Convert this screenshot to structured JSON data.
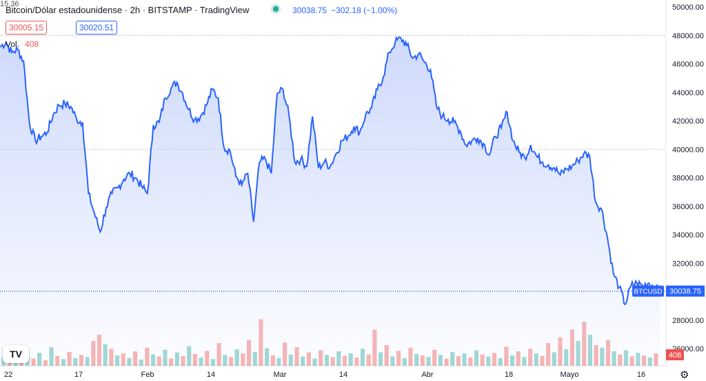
{
  "header": {
    "title": "Bitcoin/Dólar estadounidense · 2h · BITSTAMP · TradingView",
    "price": "30038.75",
    "change": "−302.18 (−1.00%)",
    "bid": "30005.15",
    "spread": "15.36",
    "ask": "30020.51",
    "vol_label": "Vol.",
    "vol_value": "408"
  },
  "colors": {
    "line": "#2962ff",
    "area_top": "#c9d6fb",
    "up_volume": "#26a69a",
    "down_volume": "#ef5350",
    "last_price_label": "#2962ff"
  },
  "icons": {
    "logo": "tradingview-logo",
    "settings": "gear-icon"
  },
  "logo_text": "TV",
  "chart_data": {
    "type": "area",
    "title": "Bitcoin/Dólar estadounidense · 2h · BITSTAMP",
    "ylim": [
      25000,
      50500
    ],
    "y_ticks": [
      "50000.00",
      "48000.00",
      "46000.00",
      "44000.00",
      "42000.00",
      "40000.00",
      "38000.00",
      "36000.00",
      "34000.00",
      "32000.00",
      "30000.00",
      "28000.00",
      "26000.00"
    ],
    "x_ticks": [
      "22",
      "17",
      "Feb",
      "14",
      "Mar",
      "14",
      "Abr",
      "18",
      "Mayo",
      "16"
    ],
    "last_label": "BTCUSD",
    "last_price": "30038.75",
    "volume_label": "408",
    "series": [
      {
        "values": [
          47200,
          47500,
          46800,
          47000,
          46200,
          41800,
          40600,
          40900,
          41200,
          42400,
          43100,
          43200,
          43000,
          42100,
          41900,
          36900,
          35500,
          34200,
          35900,
          36900,
          37300,
          37900,
          38300,
          38000,
          37400,
          36900,
          41700,
          41900,
          43600,
          44300,
          44700,
          43900,
          42800,
          42100,
          42300,
          43100,
          44200,
          43600,
          40100,
          39900,
          38100,
          37500,
          38300,
          34900,
          39100,
          39300,
          38300,
          43900,
          44200,
          42400,
          39100,
          39300,
          38800,
          42300,
          38700,
          39100,
          38800,
          39700,
          40600,
          40900,
          41600,
          41200,
          42400,
          42900,
          44200,
          45100,
          46800,
          47500,
          47800,
          47300,
          46400,
          46700,
          46100,
          45600,
          43000,
          42300,
          42100,
          41900,
          41300,
          40300,
          40600,
          40800,
          40400,
          39600,
          40900,
          41500,
          42600,
          40600,
          39800,
          39400,
          40300,
          39500,
          39100,
          38900,
          38700,
          38200,
          38600,
          38800,
          39200,
          39700,
          39500,
          36300,
          35800,
          33800,
          31300,
          30300,
          29100,
          30400,
          30600,
          30400,
          30600,
          30300,
          30038.75
        ]
      }
    ],
    "volume": [
      {
        "v": 16,
        "up": true
      },
      {
        "v": 22,
        "up": false
      },
      {
        "v": 12,
        "up": true
      },
      {
        "v": 30,
        "up": false
      },
      {
        "v": 18,
        "up": true
      },
      {
        "v": 14,
        "up": false
      },
      {
        "v": 25,
        "up": true
      },
      {
        "v": 11,
        "up": false
      },
      {
        "v": 36,
        "up": true
      },
      {
        "v": 19,
        "up": false
      },
      {
        "v": 13,
        "up": true
      },
      {
        "v": 27,
        "up": false
      },
      {
        "v": 15,
        "up": true
      },
      {
        "v": 21,
        "up": false
      },
      {
        "v": 17,
        "up": true
      },
      {
        "v": 48,
        "up": false
      },
      {
        "v": 60,
        "up": false
      },
      {
        "v": 42,
        "up": true
      },
      {
        "v": 33,
        "up": false
      },
      {
        "v": 20,
        "up": true
      },
      {
        "v": 24,
        "up": false
      },
      {
        "v": 15,
        "up": true
      },
      {
        "v": 28,
        "up": false
      },
      {
        "v": 12,
        "up": true
      },
      {
        "v": 35,
        "up": false
      },
      {
        "v": 22,
        "up": true
      },
      {
        "v": 18,
        "up": false
      },
      {
        "v": 31,
        "up": true
      },
      {
        "v": 14,
        "up": false
      },
      {
        "v": 26,
        "up": true
      },
      {
        "v": 19,
        "up": false
      },
      {
        "v": 38,
        "up": true
      },
      {
        "v": 23,
        "up": false
      },
      {
        "v": 16,
        "up": true
      },
      {
        "v": 29,
        "up": false
      },
      {
        "v": 13,
        "up": true
      },
      {
        "v": 44,
        "up": false
      },
      {
        "v": 21,
        "up": true
      },
      {
        "v": 17,
        "up": false
      },
      {
        "v": 32,
        "up": true
      },
      {
        "v": 24,
        "up": false
      },
      {
        "v": 50,
        "up": false
      },
      {
        "v": 27,
        "up": true
      },
      {
        "v": 90,
        "up": false
      },
      {
        "v": 34,
        "up": true
      },
      {
        "v": 20,
        "up": false
      },
      {
        "v": 15,
        "up": true
      },
      {
        "v": 45,
        "up": false
      },
      {
        "v": 22,
        "up": true
      },
      {
        "v": 36,
        "up": false
      },
      {
        "v": 18,
        "up": true
      },
      {
        "v": 26,
        "up": false
      },
      {
        "v": 14,
        "up": true
      },
      {
        "v": 30,
        "up": false
      },
      {
        "v": 21,
        "up": true
      },
      {
        "v": 17,
        "up": false
      },
      {
        "v": 28,
        "up": true
      },
      {
        "v": 19,
        "up": false
      },
      {
        "v": 24,
        "up": true
      },
      {
        "v": 16,
        "up": false
      },
      {
        "v": 33,
        "up": true
      },
      {
        "v": 22,
        "up": false
      },
      {
        "v": 70,
        "up": false
      },
      {
        "v": 26,
        "up": true
      },
      {
        "v": 40,
        "up": false
      },
      {
        "v": 18,
        "up": true
      },
      {
        "v": 29,
        "up": false
      },
      {
        "v": 15,
        "up": true
      },
      {
        "v": 35,
        "up": false
      },
      {
        "v": 23,
        "up": true
      },
      {
        "v": 20,
        "up": false
      },
      {
        "v": 17,
        "up": true
      },
      {
        "v": 31,
        "up": false
      },
      {
        "v": 21,
        "up": true
      },
      {
        "v": 14,
        "up": false
      },
      {
        "v": 27,
        "up": true
      },
      {
        "v": 19,
        "up": false
      },
      {
        "v": 24,
        "up": true
      },
      {
        "v": 16,
        "up": false
      },
      {
        "v": 30,
        "up": true
      },
      {
        "v": 22,
        "up": false
      },
      {
        "v": 18,
        "up": true
      },
      {
        "v": 25,
        "up": false
      },
      {
        "v": 15,
        "up": true
      },
      {
        "v": 37,
        "up": false
      },
      {
        "v": 20,
        "up": true
      },
      {
        "v": 28,
        "up": false
      },
      {
        "v": 17,
        "up": true
      },
      {
        "v": 33,
        "up": false
      },
      {
        "v": 24,
        "up": true
      },
      {
        "v": 19,
        "up": false
      },
      {
        "v": 44,
        "up": false
      },
      {
        "v": 26,
        "up": true
      },
      {
        "v": 55,
        "up": false
      },
      {
        "v": 32,
        "up": true
      },
      {
        "v": 70,
        "up": false
      },
      {
        "v": 48,
        "up": true
      },
      {
        "v": 85,
        "up": false
      },
      {
        "v": 60,
        "up": true
      },
      {
        "v": 40,
        "up": false
      },
      {
        "v": 35,
        "up": true
      },
      {
        "v": 50,
        "up": false
      },
      {
        "v": 28,
        "up": true
      },
      {
        "v": 22,
        "up": false
      },
      {
        "v": 30,
        "up": true
      },
      {
        "v": 18,
        "up": false
      },
      {
        "v": 25,
        "up": true
      },
      {
        "v": 20,
        "up": false
      },
      {
        "v": 16,
        "up": true
      },
      {
        "v": 24,
        "up": false
      }
    ]
  }
}
